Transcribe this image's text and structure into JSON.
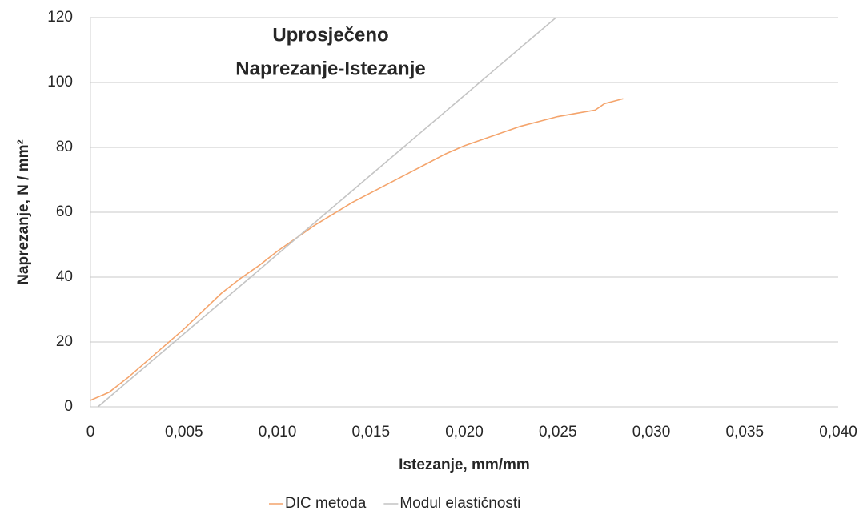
{
  "chart_data": {
    "type": "line",
    "title": [
      "Uprosječeno",
      "Naprezanje-Istezanje"
    ],
    "x_label": "Istezanje, mm/mm",
    "y_label": "Naprezanje, N / mm²",
    "xlim": [
      0,
      0.04
    ],
    "xticks": [
      0,
      {
        "value": 0.005,
        "label": "0,005"
      },
      {
        "value": 0.01,
        "label": "0,010"
      },
      {
        "value": 0.015,
        "label": "0,015"
      },
      {
        "value": 0.02,
        "label": "0,020"
      },
      {
        "value": 0.025,
        "label": "0,025"
      },
      {
        "value": 0.03,
        "label": "0,030"
      },
      {
        "value": 0.035,
        "label": "0,035"
      },
      {
        "value": 0.04,
        "label": "0,040"
      }
    ],
    "ylim": [
      0,
      120
    ],
    "yticks": [
      0,
      20,
      40,
      60,
      80,
      100,
      120
    ],
    "grid": true,
    "legend": "bottom",
    "series": [
      {
        "name": "DIC metoda",
        "color": "#f4a46c",
        "x": [
          0,
          0.001,
          0.002,
          0.003,
          0.004,
          0.005,
          0.006,
          0.007,
          0.008,
          0.009,
          0.01,
          0.011,
          0.012,
          0.013,
          0.014,
          0.015,
          0.016,
          0.017,
          0.018,
          0.019,
          0.02,
          0.021,
          0.022,
          0.023,
          0.024,
          0.025,
          0.026,
          0.027,
          0.0275,
          0.0285
        ],
        "values": [
          2,
          4.5,
          9,
          14,
          19,
          24,
          29.5,
          35,
          39.5,
          43.5,
          48,
          52,
          56,
          59.5,
          63,
          66,
          69,
          72,
          75,
          78,
          80.5,
          82.5,
          84.5,
          86.5,
          88,
          89.5,
          90.5,
          91.5,
          93.5,
          95
        ]
      },
      {
        "name": "Modul elastičnosti",
        "color": "#c4c4c4",
        "x": [
          0.0004,
          0.0249
        ],
        "values": [
          0,
          120
        ]
      }
    ]
  }
}
